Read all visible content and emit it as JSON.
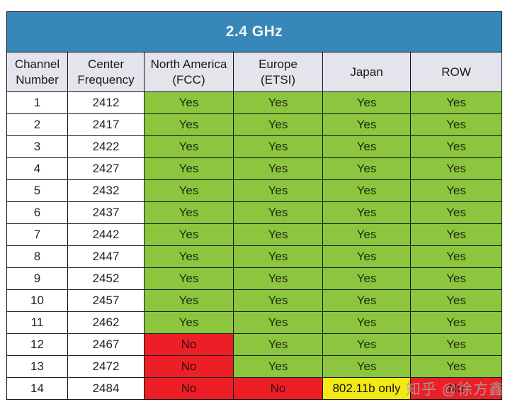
{
  "title": "2.4 GHz",
  "table": {
    "columns": [
      "Channel\nNumber",
      "Center\nFrequency",
      "North America\n(FCC)",
      "Europe\n(ETSI)",
      "Japan",
      "ROW"
    ],
    "rows": [
      {
        "channel": "1",
        "freq": "2412",
        "na": "Yes",
        "eu": "Yes",
        "jp": "Yes",
        "row": "Yes"
      },
      {
        "channel": "2",
        "freq": "2417",
        "na": "Yes",
        "eu": "Yes",
        "jp": "Yes",
        "row": "Yes"
      },
      {
        "channel": "3",
        "freq": "2422",
        "na": "Yes",
        "eu": "Yes",
        "jp": "Yes",
        "row": "Yes"
      },
      {
        "channel": "4",
        "freq": "2427",
        "na": "Yes",
        "eu": "Yes",
        "jp": "Yes",
        "row": "Yes"
      },
      {
        "channel": "5",
        "freq": "2432",
        "na": "Yes",
        "eu": "Yes",
        "jp": "Yes",
        "row": "Yes"
      },
      {
        "channel": "6",
        "freq": "2437",
        "na": "Yes",
        "eu": "Yes",
        "jp": "Yes",
        "row": "Yes"
      },
      {
        "channel": "7",
        "freq": "2442",
        "na": "Yes",
        "eu": "Yes",
        "jp": "Yes",
        "row": "Yes"
      },
      {
        "channel": "8",
        "freq": "2447",
        "na": "Yes",
        "eu": "Yes",
        "jp": "Yes",
        "row": "Yes"
      },
      {
        "channel": "9",
        "freq": "2452",
        "na": "Yes",
        "eu": "Yes",
        "jp": "Yes",
        "row": "Yes"
      },
      {
        "channel": "10",
        "freq": "2457",
        "na": "Yes",
        "eu": "Yes",
        "jp": "Yes",
        "row": "Yes"
      },
      {
        "channel": "11",
        "freq": "2462",
        "na": "Yes",
        "eu": "Yes",
        "jp": "Yes",
        "row": "Yes"
      },
      {
        "channel": "12",
        "freq": "2467",
        "na": "No",
        "eu": "Yes",
        "jp": "Yes",
        "row": "Yes"
      },
      {
        "channel": "13",
        "freq": "2472",
        "na": "No",
        "eu": "Yes",
        "jp": "Yes",
        "row": "Yes"
      },
      {
        "channel": "14",
        "freq": "2484",
        "na": "No",
        "eu": "No",
        "jp": "802.11b only",
        "row": "No"
      }
    ]
  },
  "chart_data": {
    "type": "table",
    "title": "2.4 GHz",
    "columns": [
      "Channel Number",
      "Center Frequency",
      "North America (FCC)",
      "Europe (ETSI)",
      "Japan",
      "ROW"
    ],
    "rows": [
      [
        1,
        2412,
        "Yes",
        "Yes",
        "Yes",
        "Yes"
      ],
      [
        2,
        2417,
        "Yes",
        "Yes",
        "Yes",
        "Yes"
      ],
      [
        3,
        2422,
        "Yes",
        "Yes",
        "Yes",
        "Yes"
      ],
      [
        4,
        2427,
        "Yes",
        "Yes",
        "Yes",
        "Yes"
      ],
      [
        5,
        2432,
        "Yes",
        "Yes",
        "Yes",
        "Yes"
      ],
      [
        6,
        2437,
        "Yes",
        "Yes",
        "Yes",
        "Yes"
      ],
      [
        7,
        2442,
        "Yes",
        "Yes",
        "Yes",
        "Yes"
      ],
      [
        8,
        2447,
        "Yes",
        "Yes",
        "Yes",
        "Yes"
      ],
      [
        9,
        2452,
        "Yes",
        "Yes",
        "Yes",
        "Yes"
      ],
      [
        10,
        2457,
        "Yes",
        "Yes",
        "Yes",
        "Yes"
      ],
      [
        11,
        2462,
        "Yes",
        "Yes",
        "Yes",
        "Yes"
      ],
      [
        12,
        2467,
        "No",
        "Yes",
        "Yes",
        "Yes"
      ],
      [
        13,
        2472,
        "No",
        "Yes",
        "Yes",
        "Yes"
      ],
      [
        14,
        2484,
        "No",
        "No",
        "802.11b only",
        "No"
      ]
    ],
    "cell_color_legend": {
      "Yes": "green",
      "No": "red",
      "802.11b only": "yellow"
    }
  },
  "watermark": "知乎 @徐方鑫",
  "colors": {
    "blue": "#3787b8",
    "headerBg": "#e4e4ec",
    "green": "#8cc63f",
    "red": "#ec1f26",
    "yellow": "#f2e915",
    "border": "#141414",
    "watermarkGray": "#a3a3a3"
  }
}
